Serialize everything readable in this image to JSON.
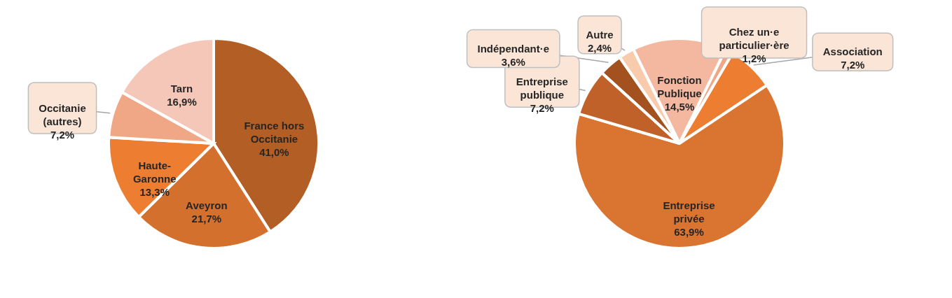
{
  "chart_data": [
    {
      "type": "pie",
      "categories": [
        "France hors Occitanie",
        "Aveyron",
        "Haute-Garonne",
        "Occitanie (autres)",
        "Tarn"
      ],
      "values": [
        41.0,
        21.7,
        13.3,
        7.2,
        16.9
      ],
      "value_labels": [
        "41,0%",
        "21,7%",
        "13,3%",
        "7,2%",
        "16,9%"
      ],
      "colors": [
        "#b35e24",
        "#d4702e",
        "#ed7d31",
        "#f0a785",
        "#f4c7b8"
      ]
    },
    {
      "type": "pie",
      "categories": [
        "Fonction Publique",
        "Chez un·e particulier·ère",
        "Association",
        "Entreprise privée",
        "Entreprise publique",
        "Indépendant·e",
        "Autre"
      ],
      "values": [
        14.5,
        1.2,
        7.2,
        63.9,
        7.2,
        3.6,
        2.4
      ],
      "value_labels": [
        "14,5%",
        "1,2%",
        "7,2%",
        "63,9%",
        "7,2%",
        "3,6%",
        "2,4%"
      ],
      "colors": [
        "#f4b79f",
        "#f0a785",
        "#ed7d31",
        "#da7431",
        "#c0612a",
        "#a3521f",
        "#f8cbad"
      ]
    }
  ]
}
